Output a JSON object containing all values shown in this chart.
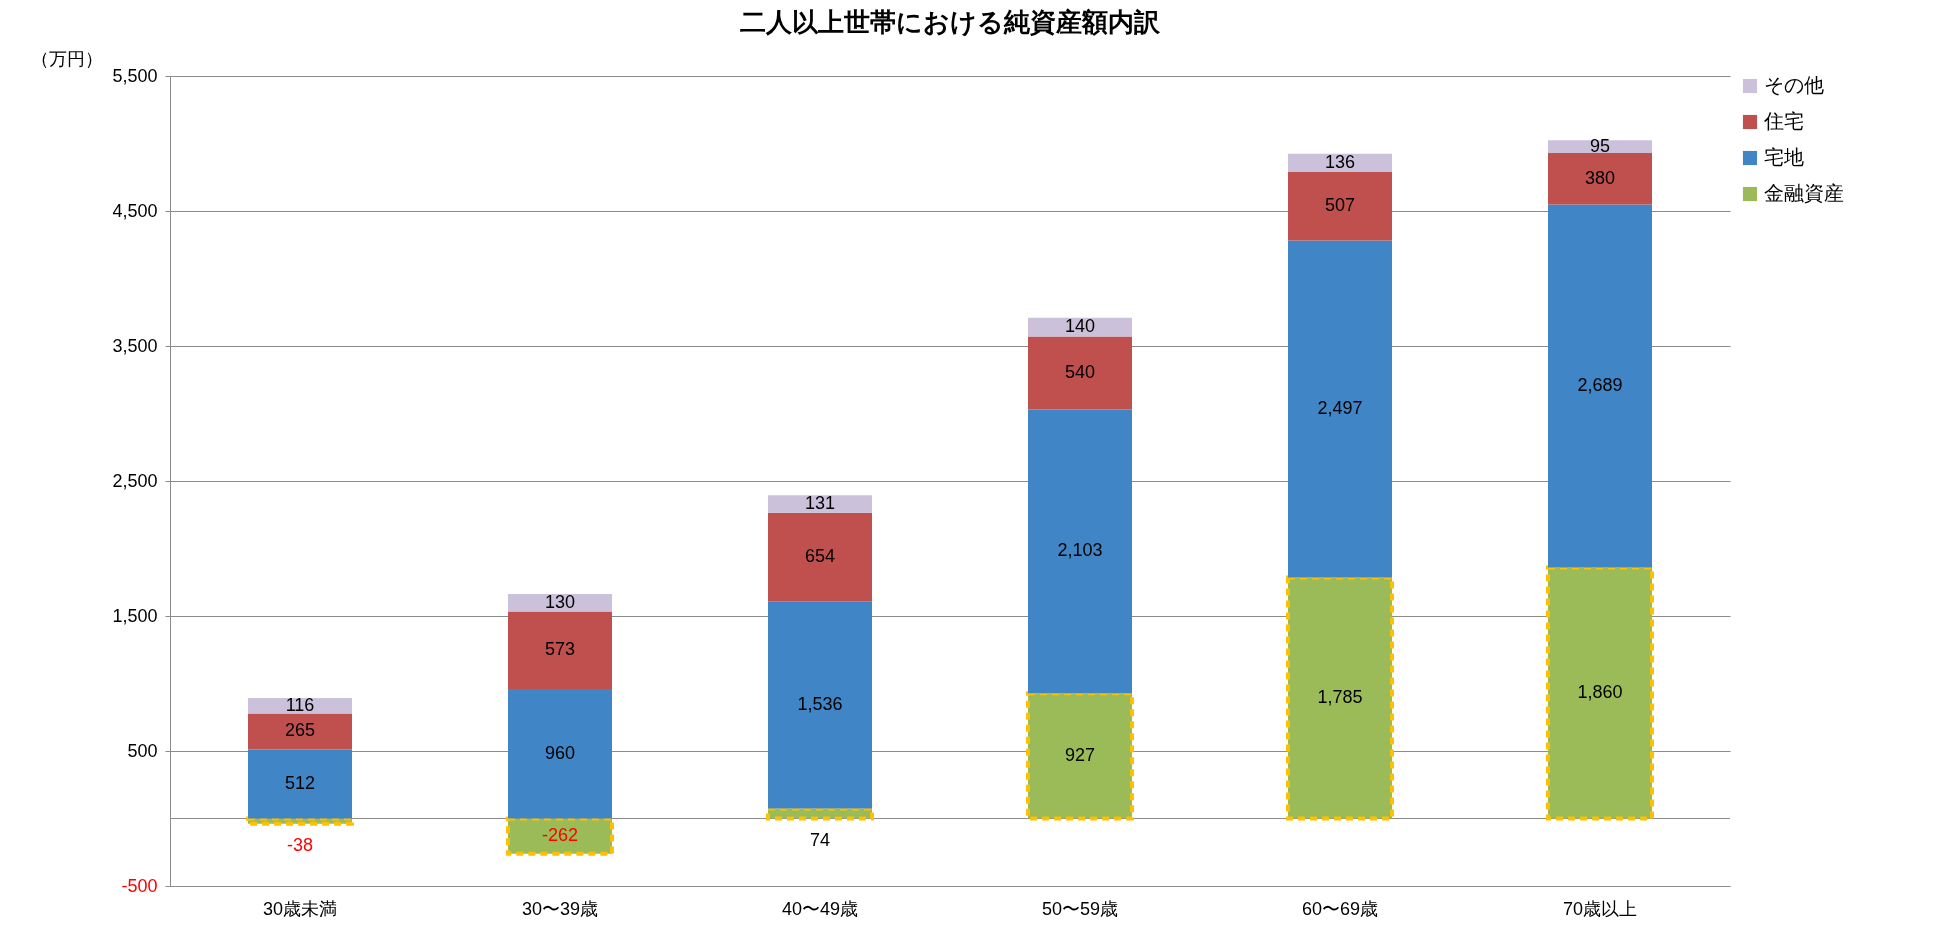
{
  "chart_data": {
    "type": "bar",
    "stacked": true,
    "title": "二人以上世帯における純資産額内訳",
    "ylabel": "（万円）",
    "categories": [
      "30歳未満",
      "30〜39歳",
      "40〜49歳",
      "50〜59歳",
      "60〜69歳",
      "70歳以上"
    ],
    "series": [
      {
        "name": "金融資産",
        "color": "#9bbb59",
        "values": [
          -38,
          -262,
          74,
          927,
          1785,
          1860
        ],
        "value_labels": [
          "-38",
          "-262",
          "74",
          "927",
          "1,785",
          "1,860"
        ]
      },
      {
        "name": "宅地",
        "color": "#4085c6",
        "values": [
          512,
          960,
          1536,
          2103,
          2497,
          2689
        ],
        "value_labels": [
          "512",
          "960",
          "1,536",
          "2,103",
          "2,497",
          "2,689"
        ]
      },
      {
        "name": "住宅",
        "color": "#c0504d",
        "values": [
          265,
          573,
          654,
          540,
          507,
          380
        ],
        "value_labels": [
          "265",
          "573",
          "654",
          "540",
          "507",
          "380"
        ]
      },
      {
        "name": "その他",
        "color": "#ccc1da",
        "values": [
          116,
          130,
          131,
          140,
          136,
          95
        ],
        "value_labels": [
          "116",
          "130",
          "131",
          "140",
          "136",
          "95"
        ]
      }
    ],
    "ylim": [
      -500,
      5500
    ],
    "yticks": [
      {
        "value": -500,
        "label": "-500"
      },
      {
        "value": 500,
        "label": "500"
      },
      {
        "value": 1500,
        "label": "1,500"
      },
      {
        "value": 2500,
        "label": "2,500"
      },
      {
        "value": 3500,
        "label": "3,500"
      },
      {
        "value": 4500,
        "label": "4,500"
      },
      {
        "value": 5500,
        "label": "5,500"
      }
    ],
    "grid": "y",
    "legend": "right"
  }
}
